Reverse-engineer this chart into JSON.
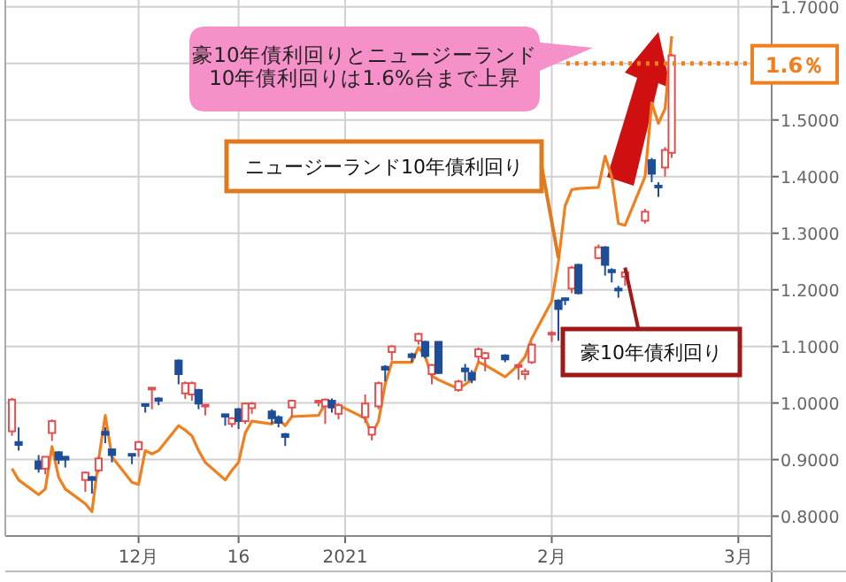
{
  "chart_data": {
    "type": "candlestick",
    "x": [
      "2020-11-12",
      "2020-11-13",
      "2020-11-16",
      "2020-11-17",
      "2020-11-18",
      "2020-11-19",
      "2020-11-20",
      "2020-11-23",
      "2020-11-24",
      "2020-11-25",
      "2020-11-26",
      "2020-11-27",
      "2020-11-30",
      "2020-12-01",
      "2020-12-02",
      "2020-12-03",
      "2020-12-04",
      "2020-12-07",
      "2020-12-08",
      "2020-12-09",
      "2020-12-10",
      "2020-12-11",
      "2020-12-14",
      "2020-12-15",
      "2020-12-16",
      "2020-12-17",
      "2020-12-18",
      "2020-12-21",
      "2020-12-22",
      "2020-12-23",
      "2020-12-24",
      "2020-12-28",
      "2020-12-29",
      "2020-12-30",
      "2020-12-31",
      "2021-01-04",
      "2021-01-05",
      "2021-01-06",
      "2021-01-07",
      "2021-01-08",
      "2021-01-11",
      "2021-01-12",
      "2021-01-13",
      "2021-01-14",
      "2021-01-15",
      "2021-01-18",
      "2021-01-19",
      "2021-01-20",
      "2021-01-21",
      "2021-01-22",
      "2021-01-25",
      "2021-01-27",
      "2021-01-28",
      "2021-01-29",
      "2021-02-01",
      "2021-02-02",
      "2021-02-03",
      "2021-02-04",
      "2021-02-05",
      "2021-02-08",
      "2021-02-09",
      "2021-02-10",
      "2021-02-11",
      "2021-02-12",
      "2021-02-15",
      "2021-02-16",
      "2021-02-17",
      "2021-02-18",
      "2021-02-19"
    ],
    "series": [
      {
        "name": "豪10年債利回り",
        "ohlc": [
          [
            0.95,
            1.009,
            0.942,
            1.006
          ],
          [
            0.931,
            0.957,
            0.916,
            0.926
          ],
          [
            0.897,
            0.908,
            0.877,
            0.884
          ],
          [
            0.884,
            0.905,
            0.874,
            0.905
          ],
          [
            0.947,
            0.971,
            0.933,
            0.968
          ],
          [
            0.913,
            0.915,
            0.892,
            0.9
          ],
          [
            0.905,
            0.906,
            0.886,
            0.9
          ],
          [
            0.864,
            0.879,
            0.843,
            0.877
          ],
          [
            0.869,
            0.871,
            0.84,
            0.864
          ],
          [
            0.881,
            0.905,
            0.877,
            0.902
          ],
          [
            0.949,
            0.957,
            0.929,
            0.944
          ],
          [
            0.918,
            0.919,
            0.895,
            0.908
          ],
          [
            0.91,
            0.91,
            0.892,
            0.908
          ],
          [
            0.918,
            0.933,
            0.905,
            0.931
          ],
          [
            0.998,
            0.999,
            0.983,
            0.995
          ],
          [
            1.024,
            1.027,
            0.989,
            1.027
          ],
          [
            1.008,
            1.01,
            0.996,
            1.004
          ],
          [
            1.075,
            1.077,
            1.033,
            1.051
          ],
          [
            1.017,
            1.038,
            1.007,
            1.035
          ],
          [
            1.015,
            1.038,
            1.004,
            1.035
          ],
          [
            1.023,
            1.025,
            0.989,
            0.999
          ],
          [
            0.994,
            0.997,
            0.978,
            0.997
          ],
          [
            0.98,
            0.981,
            0.96,
            0.976
          ],
          [
            0.963,
            0.975,
            0.957,
            0.973
          ],
          [
            0.989,
            0.991,
            0.954,
            0.968
          ],
          [
            0.968,
            1.001,
            0.963,
            0.999
          ],
          [
            0.991,
            1.002,
            0.981,
            0.999
          ],
          [
            0.985,
            0.989,
            0.963,
            0.973
          ],
          [
            0.975,
            0.978,
            0.957,
            0.965
          ],
          [
            0.945,
            0.947,
            0.924,
            0.94
          ],
          [
            0.992,
            1.006,
            0.975,
            1.004
          ],
          [
            1.001,
            1.004,
            0.994,
            1.004
          ],
          [
            0.994,
            1.008,
            0.963,
            1.006
          ],
          [
            1.004,
            1.008,
            0.983,
            0.992
          ],
          [
            0.981,
            0.999,
            0.971,
            0.996
          ],
          [
            0.975,
            1.015,
            0.965,
            0.999
          ],
          [
            0.944,
            0.959,
            0.934,
            0.957
          ],
          [
            0.994,
            1.038,
            0.989,
            1.035
          ],
          [
            1.064,
            1.067,
            1.038,
            1.059
          ],
          [
            1.09,
            1.102,
            1.075,
            1.1
          ],
          [
            1.086,
            1.089,
            1.072,
            1.081
          ],
          [
            1.11,
            1.124,
            1.103,
            1.122
          ],
          [
            1.108,
            1.11,
            1.079,
            1.083
          ],
          [
            1.051,
            1.069,
            1.033,
            1.067
          ],
          [
            1.108,
            1.108,
            1.051,
            1.053
          ],
          [
            1.023,
            1.041,
            1.02,
            1.038
          ],
          [
            1.061,
            1.069,
            1.038,
            1.056
          ],
          [
            1.053,
            1.058,
            1.035,
            1.041
          ],
          [
            1.082,
            1.098,
            1.072,
            1.095
          ],
          [
            1.079,
            1.09,
            1.056,
            1.088
          ],
          [
            1.084,
            1.086,
            1.072,
            1.077
          ],
          [
            1.064,
            1.067,
            1.041,
            1.067
          ],
          [
            1.051,
            1.061,
            1.041,
            1.056
          ],
          [
            1.072,
            1.106,
            1.069,
            1.103
          ],
          [
            1.121,
            1.127,
            1.108,
            1.124
          ],
          [
            1.181,
            1.183,
            1.11,
            1.166
          ],
          [
            1.185,
            1.186,
            1.173,
            1.182
          ],
          [
            1.202,
            1.242,
            1.194,
            1.239
          ],
          [
            1.244,
            1.246,
            1.192,
            1.194
          ],
          [
            1.256,
            1.28,
            1.254,
            1.275
          ],
          [
            1.275,
            1.277,
            1.225,
            1.244
          ],
          [
            1.235,
            1.238,
            1.213,
            1.231
          ],
          [
            1.202,
            1.207,
            1.186,
            1.199
          ],
          [
            1.223,
            1.233,
            1.207,
            1.231
          ],
          [
            1.322,
            1.343,
            1.317,
            1.338
          ],
          [
            1.429,
            1.433,
            1.39,
            1.405
          ],
          [
            1.384,
            1.39,
            1.364,
            1.381
          ],
          [
            1.416,
            1.452,
            1.4,
            1.447
          ],
          [
            1.442,
            1.617,
            1.433,
            1.614
          ]
        ],
        "colors": [
          "#e05050",
          "#1f4e99",
          "#1f4e99",
          "#e05050",
          "#e05050",
          "#1f4e99",
          "#1f4e99",
          "#e05050",
          "#1f4e99",
          "#e05050",
          "#1f4e99",
          "#1f4e99",
          "#1f4e99",
          "#e05050",
          "#1f4e99",
          "#e05050",
          "#1f4e99",
          "#1f4e99",
          "#e05050",
          "#e05050",
          "#1f4e99",
          "#e05050",
          "#1f4e99",
          "#e05050",
          "#1f4e99",
          "#e05050",
          "#e05050",
          "#1f4e99",
          "#1f4e99",
          "#1f4e99",
          "#e05050",
          "#e05050",
          "#e05050",
          "#1f4e99",
          "#e05050",
          "#e05050",
          "#e05050",
          "#e05050",
          "#1f4e99",
          "#e05050",
          "#1f4e99",
          "#e05050",
          "#1f4e99",
          "#e05050",
          "#1f4e99",
          "#e05050",
          "#1f4e99",
          "#1f4e99",
          "#e05050",
          "#e05050",
          "#1f4e99",
          "#e05050",
          "#e05050",
          "#e05050",
          "#e05050",
          "#1f4e99",
          "#1f4e99",
          "#e05050",
          "#1f4e99",
          "#e05050",
          "#1f4e99",
          "#1f4e99",
          "#1f4e99",
          "#e05050",
          "#e05050",
          "#1f4e99",
          "#1f4e99",
          "#e05050",
          "#e05050"
        ]
      },
      {
        "name": "ニュージーランド10年債利回り",
        "type": "line",
        "color": "#f07f1f",
        "values": [
          0.884,
          0.864,
          0.838,
          0.848,
          0.923,
          0.869,
          0.848,
          0.822,
          0.808,
          0.9,
          0.978,
          0.905,
          0.86,
          0.856,
          0.916,
          0.91,
          0.916,
          0.96,
          0.952,
          0.942,
          0.916,
          0.895,
          0.864,
          0.881,
          0.895,
          0.947,
          0.968,
          0.963,
          0.971,
          0.96,
          0.976,
          0.978,
          0.999,
          0.996,
          0.996,
          0.973,
          0.944,
          0.968,
          1.033,
          1.072,
          1.072,
          1.098,
          1.082,
          1.048,
          1.041,
          1.025,
          1.033,
          1.041,
          1.072,
          1.067,
          1.046,
          1.067,
          1.082,
          1.114,
          1.18,
          1.25,
          1.348,
          1.377,
          1.379,
          1.381,
          1.436,
          1.4,
          1.317,
          1.314,
          1.4,
          1.53,
          1.494,
          1.52,
          1.648
        ]
      }
    ],
    "xlim": [
      "2020-11-11",
      "2021-03-06"
    ],
    "xticks": [
      {
        "value": "2020-12-01",
        "label": "12月"
      },
      {
        "value": "2020-12-16",
        "label": "16"
      },
      {
        "value": "2021-01-01",
        "label": "2021"
      },
      {
        "value": "2021-02-01",
        "label": "2月"
      },
      {
        "value": "2021-03-01",
        "label": "3月"
      }
    ],
    "ylim": [
      0.765,
      1.712
    ],
    "yticks": [
      {
        "value": 0.8,
        "label": "0.8000"
      },
      {
        "value": 0.9,
        "label": "0.9000"
      },
      {
        "value": 1.0,
        "label": "1.0000"
      },
      {
        "value": 1.1,
        "label": "1.1000"
      },
      {
        "value": 1.2,
        "label": "1.2000"
      },
      {
        "value": 1.3,
        "label": "1.3000"
      },
      {
        "value": 1.4,
        "label": "1.4000"
      },
      {
        "value": 1.5,
        "label": "1.5000"
      },
      {
        "value": 1.6,
        "label": null
      },
      {
        "value": 1.7,
        "label": "1.7000"
      }
    ],
    "grid": true,
    "ref_lines": [
      {
        "axis": "y",
        "value": 1.6,
        "label": "1.6％",
        "color": "#f07f1f",
        "line_style": "dotted"
      }
    ],
    "annotations": [
      "豪10年債利回りとニュージーランド\n10年債利回りは1.6%台まで上昇"
    ]
  }
}
